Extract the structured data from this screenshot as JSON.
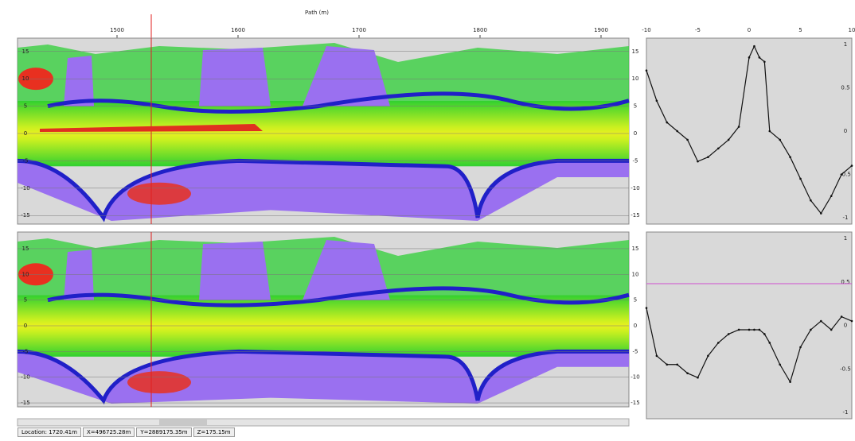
{
  "x_axis": {
    "label": "Path (m)",
    "ticks": [
      1500,
      1600,
      1700,
      1800,
      1900
    ]
  },
  "depth_ticks": [
    15,
    10,
    5,
    0,
    -5,
    -10,
    -15
  ],
  "profile_axis": {
    "ticks": [
      -10,
      -5,
      0,
      5,
      10
    ],
    "side_ticks": [
      1,
      0.5,
      0,
      -0.5,
      -1
    ]
  },
  "profiles": [
    {
      "x": [
        -10,
        -9,
        -8,
        -7,
        -6,
        -5,
        -4,
        -3,
        -2,
        -1,
        0,
        0.5,
        1,
        1.5,
        2,
        3,
        4,
        5,
        6,
        7,
        8,
        9,
        10
      ],
      "values": [
        0.7,
        0.35,
        0.1,
        0,
        -0.1,
        -0.35,
        -0.3,
        -0.2,
        -0.1,
        0.05,
        0.85,
        0.98,
        0.85,
        0.8,
        0,
        -0.1,
        -0.3,
        -0.55,
        -0.8,
        -0.95,
        -0.75,
        -0.5,
        -0.4
      ]
    },
    {
      "x": [
        -10,
        -9,
        -8,
        -7,
        -6,
        -5,
        -4,
        -3,
        -2,
        -1,
        0,
        0.5,
        1,
        1.5,
        2,
        3,
        4,
        5,
        6,
        7,
        8,
        9,
        10
      ],
      "values": [
        0.2,
        -0.35,
        -0.45,
        -0.45,
        -0.55,
        -0.6,
        -0.35,
        -0.2,
        -0.1,
        -0.05,
        -0.05,
        -0.05,
        -0.05,
        -0.1,
        -0.2,
        -0.45,
        -0.65,
        -0.25,
        -0.05,
        0.05,
        -0.05,
        0.1,
        0.05
      ]
    }
  ],
  "status_bar": [
    "Location: 1720.41m",
    "X=496725.28m",
    "Y=2889175.35m",
    "Z=175.15m"
  ]
}
